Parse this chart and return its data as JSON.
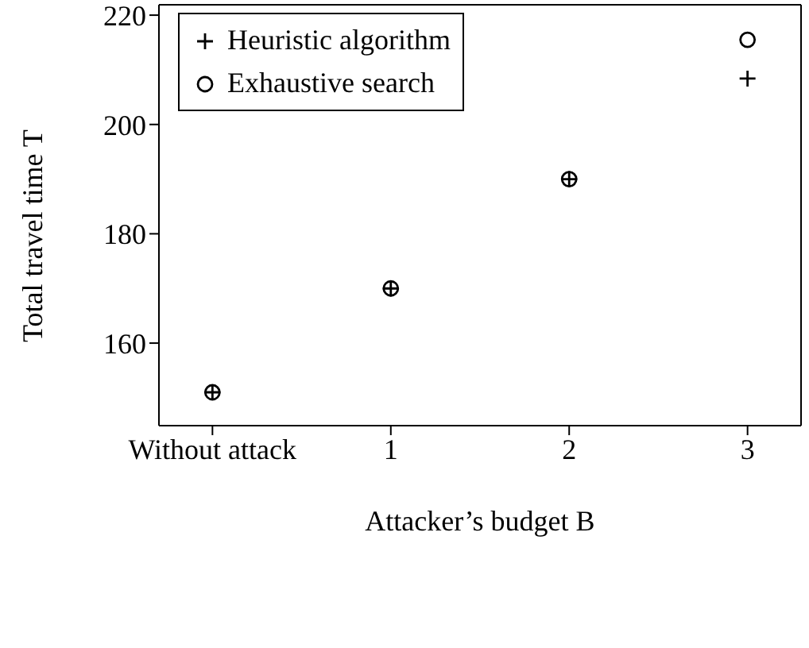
{
  "chart_data": {
    "type": "scatter",
    "xlabel": "Attacker’s budget B",
    "ylabel": "Total travel time T",
    "categories": [
      "Without attack",
      "1",
      "2",
      "3"
    ],
    "series": [
      {
        "name": "Heuristic algorithm",
        "color": "#000000",
        "marker": "cross",
        "values": [
          151,
          170,
          190,
          208.4
        ]
      },
      {
        "name": "Exhaustive search",
        "color": "#000000",
        "marker": "circle",
        "values": [
          151,
          170,
          190,
          215.5
        ]
      }
    ],
    "ylim": [
      144.9,
      221.9
    ],
    "yticks": [
      160,
      180,
      200,
      220
    ],
    "grid": false,
    "legend": "top left"
  }
}
